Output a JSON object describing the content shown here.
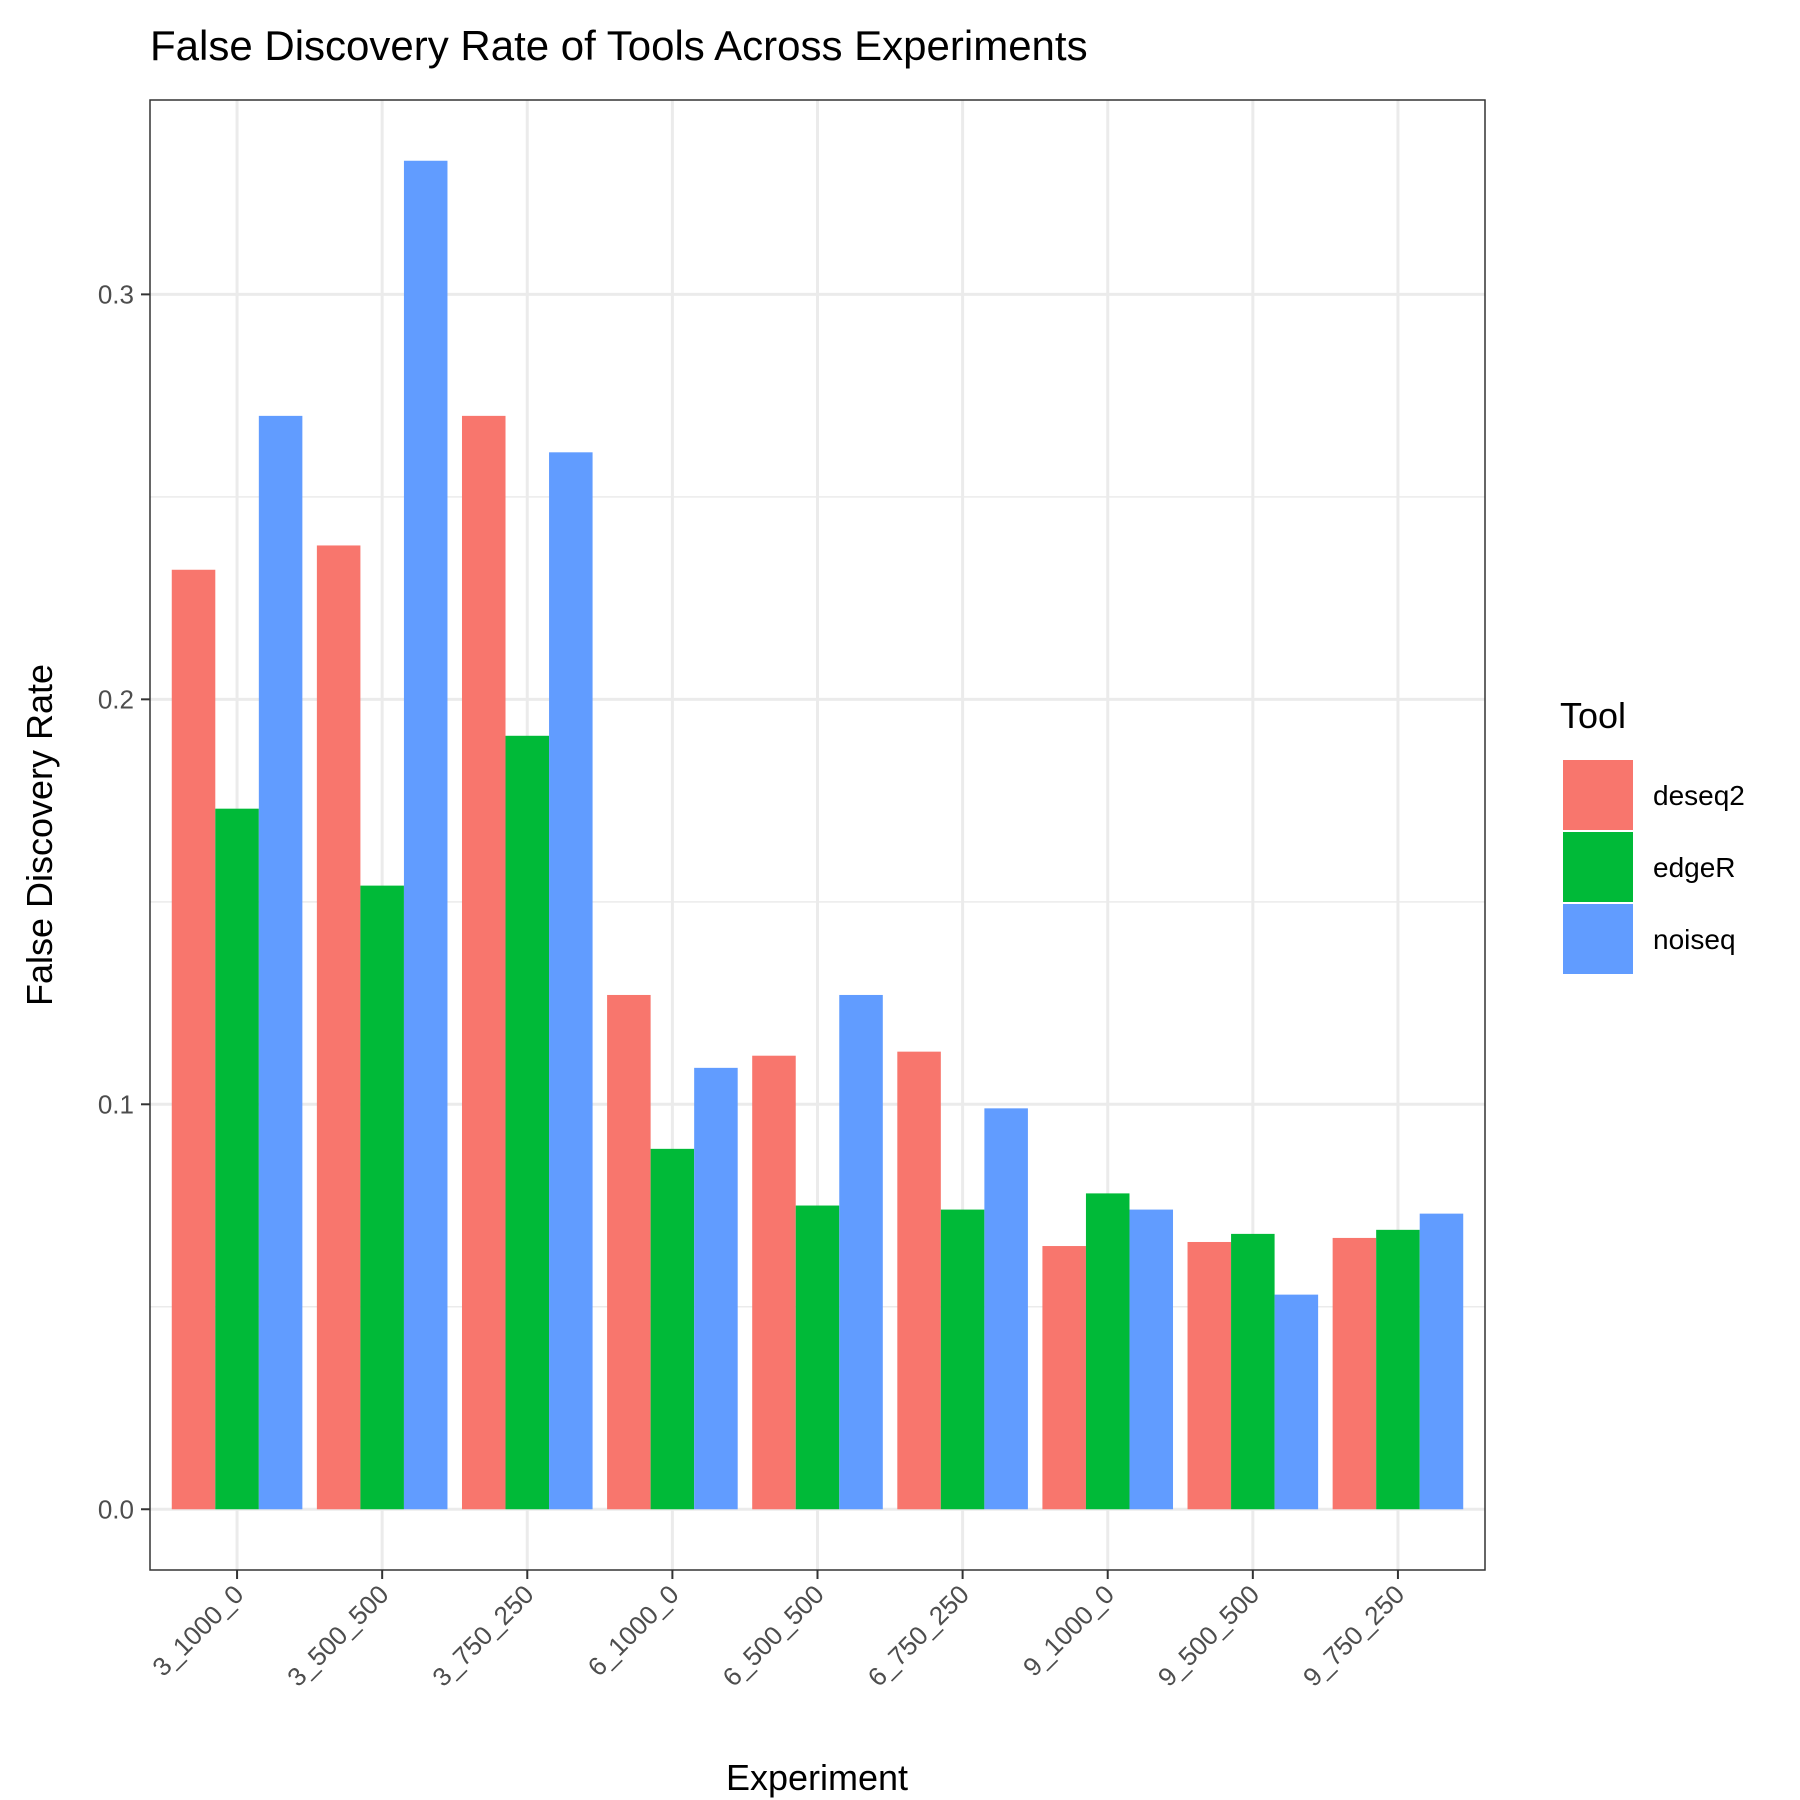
{
  "chart_data": {
    "type": "bar",
    "title": "False Discovery Rate of Tools Across Experiments",
    "xlabel": "Experiment",
    "ylabel": "False Discovery Rate",
    "ylim": [
      -0.015,
      0.348
    ],
    "yticks": [
      0.0,
      0.1,
      0.2,
      0.3
    ],
    "ytick_labels": [
      "0.0",
      "0.1",
      "0.2",
      "0.3"
    ],
    "grid": true,
    "legend_position": "right",
    "legend_title": "Tool",
    "categories": [
      "3_1000_0",
      "3_500_500",
      "3_750_250",
      "6_1000_0",
      "6_500_500",
      "6_750_250",
      "9_1000_0",
      "9_500_500",
      "9_750_250"
    ],
    "series": [
      {
        "name": "deseq2",
        "color": "#F8766D",
        "values": [
          0.232,
          0.238,
          0.27,
          0.127,
          0.112,
          0.113,
          0.065,
          0.066,
          0.067
        ]
      },
      {
        "name": "edgeR",
        "color": "#00BA38",
        "values": [
          0.173,
          0.154,
          0.191,
          0.089,
          0.075,
          0.074,
          0.078,
          0.068,
          0.069
        ]
      },
      {
        "name": "noiseq",
        "color": "#619CFF",
        "values": [
          0.27,
          0.333,
          0.261,
          0.109,
          0.127,
          0.099,
          0.074,
          0.053,
          0.073
        ]
      }
    ]
  }
}
